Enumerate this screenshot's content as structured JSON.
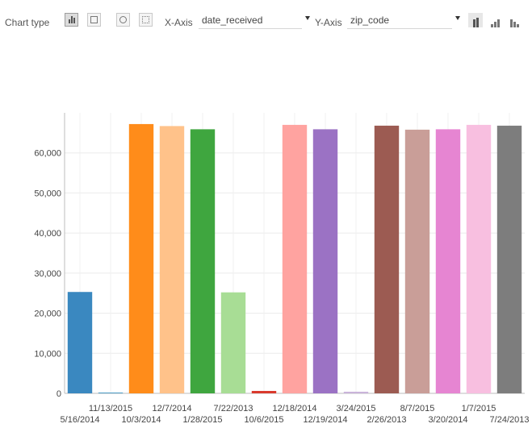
{
  "toolbar": {
    "chart_type_label": "Chart type",
    "chart_type_buttons": [
      {
        "icon": "bar-chart-icon",
        "active": true
      },
      {
        "icon": "table-icon",
        "active": false
      },
      {
        "icon": "pie-chart-icon",
        "active": false
      },
      {
        "icon": "scatter-chart-icon",
        "active": false
      }
    ],
    "x_axis_label": "X-Axis",
    "x_axis_value": "date_received",
    "y_axis_label": "Y-Axis",
    "y_axis_value": "zip_code",
    "sort_buttons": [
      {
        "icon": "sort-default-icon",
        "active": true
      },
      {
        "icon": "sort-ascending-icon",
        "active": false
      },
      {
        "icon": "sort-descending-icon",
        "active": false
      }
    ]
  },
  "chart_data": {
    "type": "bar",
    "categories": [
      "5/16/2014",
      "11/13/2015",
      "10/3/2014",
      "12/7/2014",
      "1/28/2015",
      "7/22/2013",
      "10/6/2015",
      "12/18/2014",
      "12/19/2014",
      "3/24/2015",
      "2/26/2013",
      "8/7/2015",
      "3/20/2014",
      "1/7/2015",
      "7/24/2013"
    ],
    "values": [
      25300,
      150,
      67200,
      66700,
      65900,
      25200,
      600,
      67000,
      65900,
      400,
      66800,
      65800,
      65900,
      67000,
      66800
    ],
    "colors": [
      "#3a88c0",
      "#4f9ec8",
      "#ff8c1a",
      "#ffc28a",
      "#3fa63f",
      "#a8dd95",
      "#d9392c",
      "#ffa3a0",
      "#9b72c4",
      "#c9b3da",
      "#9c5b52",
      "#c99e98",
      "#e685d2",
      "#f8bfe0",
      "#7d7d7d"
    ],
    "title": "",
    "xlabel": "",
    "ylabel": "",
    "ylim": [
      0,
      70000
    ],
    "yticks": [
      0,
      10000,
      20000,
      30000,
      40000,
      50000,
      60000
    ],
    "ytick_labels": [
      "0",
      "10,000",
      "20,000",
      "30,000",
      "40,000",
      "50,000",
      "60,000"
    ],
    "grid": true,
    "legend": "none"
  }
}
